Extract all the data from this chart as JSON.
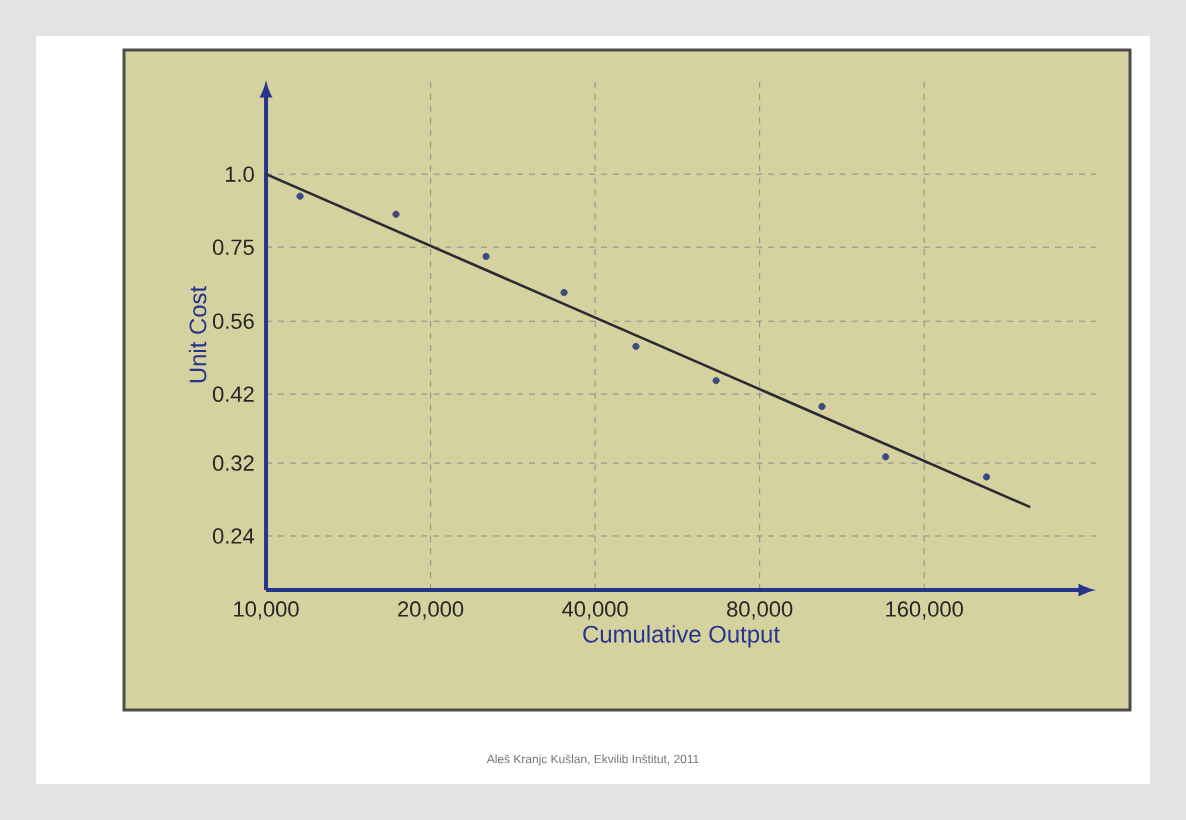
{
  "chart_data": {
    "type": "scatter",
    "xlabel": "Cumulative Output",
    "ylabel": "Unit Cost",
    "log": "xy",
    "xlim": [
      10000,
      330000
    ],
    "ylim": [
      0.194,
      1.45
    ],
    "xticks": [
      {
        "value": 10000,
        "label": "10,000"
      },
      {
        "value": 20000,
        "label": "20,000"
      },
      {
        "value": 40000,
        "label": "40,000"
      },
      {
        "value": 80000,
        "label": "80,000"
      },
      {
        "value": 160000,
        "label": "160,000"
      }
    ],
    "yticks": [
      {
        "value": 1,
        "label": "1.0"
      },
      0.75,
      0.56,
      0.42,
      0.32,
      0.24
    ],
    "grid": true,
    "series": [
      {
        "marker": "circle",
        "color": "#3b4a80",
        "x": [
          11540,
          17290,
          25270,
          35100,
          47500,
          66600,
          104000,
          136000,
          208000
        ],
        "values": [
          0.917,
          0.854,
          0.723,
          0.627,
          0.507,
          0.443,
          0.4,
          0.328,
          0.303
        ]
      },
      {
        "type": "line",
        "marker": "none",
        "color": "#2b2b33",
        "x": [
          10000,
          250000
        ],
        "values": [
          1.0,
          0.269
        ]
      }
    ],
    "annotations": [
      "Aleš Kranjc Kušlan, Ekvilib Inštitut, 2011"
    ]
  }
}
